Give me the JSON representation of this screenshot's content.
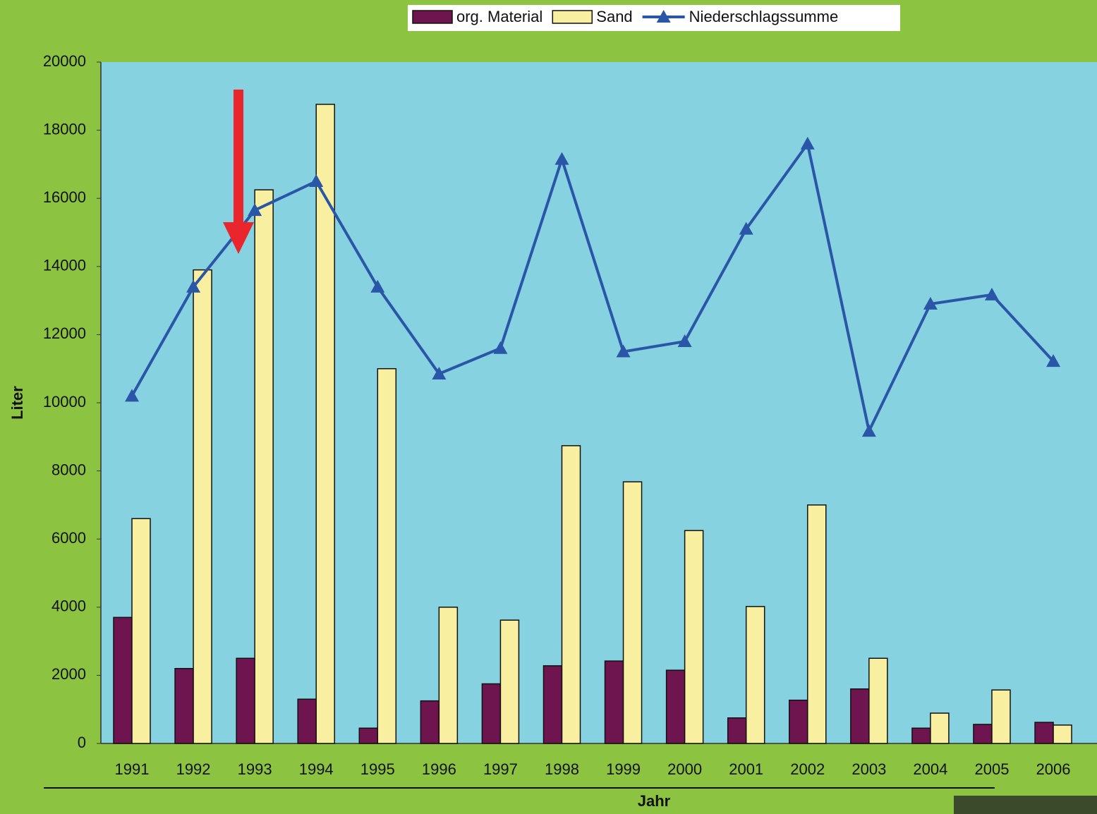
{
  "chart_data": {
    "type": "bar-line",
    "categories": [
      "1991",
      "1992",
      "1993",
      "1994",
      "1995",
      "1996",
      "1997",
      "1998",
      "1999",
      "2000",
      "2001",
      "2002",
      "2003",
      "2004",
      "2005",
      "2006"
    ],
    "series": [
      {
        "name": "org. Material",
        "color": "#6e1550",
        "type": "bar",
        "values": [
          3700,
          2200,
          2500,
          1300,
          450,
          1250,
          1750,
          2280,
          2420,
          2150,
          750,
          1270,
          1600,
          450,
          560,
          620
        ]
      },
      {
        "name": "Sand",
        "color": "#f8f0a0",
        "type": "bar",
        "values": [
          6600,
          13900,
          16250,
          18760,
          11000,
          4000,
          3620,
          8740,
          7680,
          6250,
          4020,
          7000,
          2500,
          890,
          1570,
          540
        ]
      },
      {
        "name": "Niederschlagssumme",
        "color": "#2a56a8",
        "type": "line",
        "values": [
          10200,
          13400,
          15650,
          16500,
          13400,
          10850,
          11600,
          17150,
          11500,
          11800,
          15100,
          17600,
          9170,
          12900,
          13170,
          11220
        ]
      }
    ],
    "y_label": "Liter",
    "x_label": "Jahr",
    "ylim": [
      0,
      20000
    ],
    "yticks": [
      0,
      2000,
      4000,
      6000,
      8000,
      10000,
      12000,
      14000,
      16000,
      18000,
      20000
    ]
  }
}
